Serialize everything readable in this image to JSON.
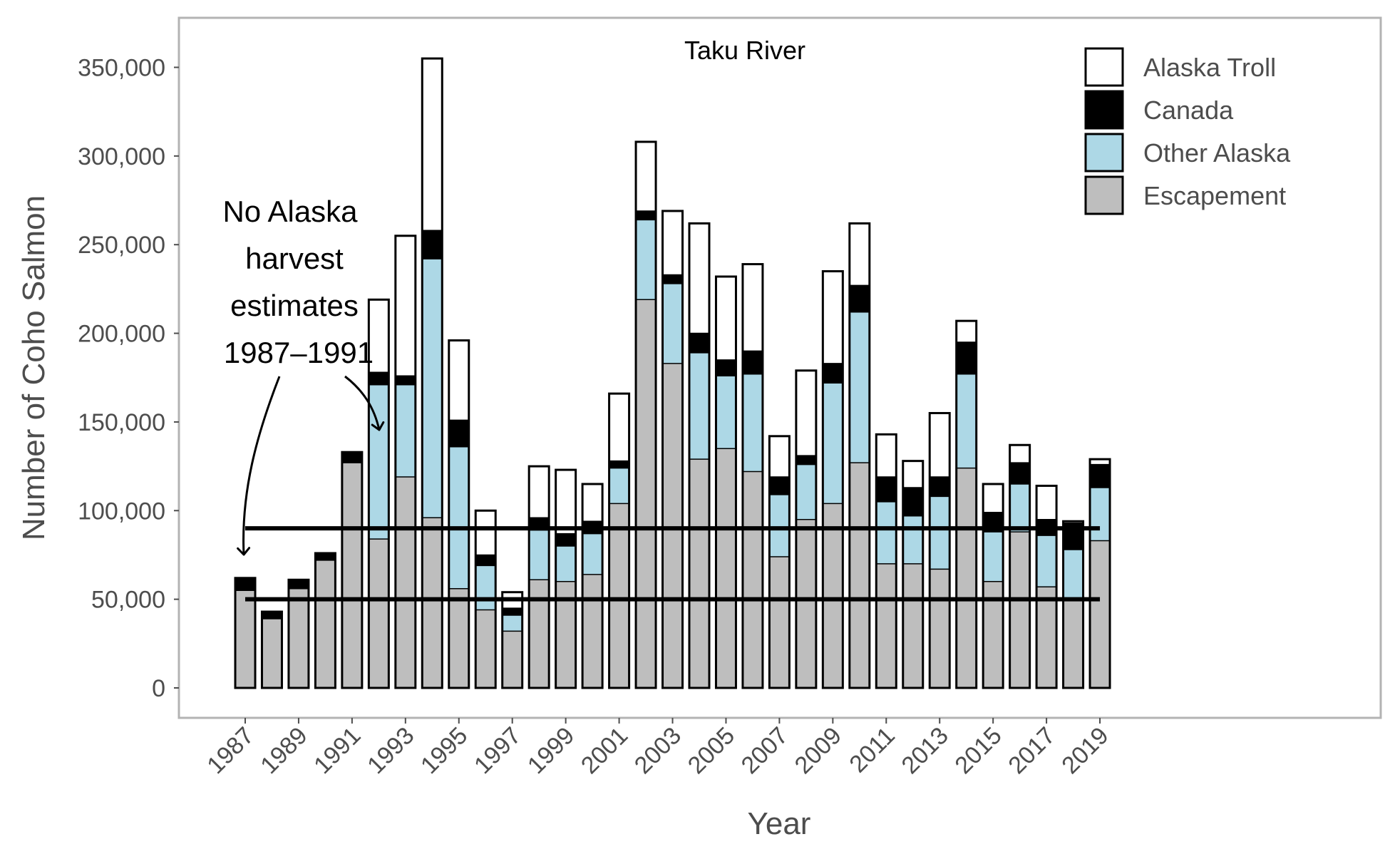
{
  "chart_data": {
    "type": "bar",
    "stacked": true,
    "title": "Taku River",
    "xlabel": "Year",
    "ylabel": "Number of Coho Salmon",
    "ylim": [
      0,
      375000
    ],
    "xlim": [
      1986,
      1988
    ],
    "y_ticks": [
      0,
      50000,
      100000,
      150000,
      200000,
      250000,
      300000,
      350000
    ],
    "y_tick_labels": [
      "0",
      "50,000",
      "100,000",
      "150,000",
      "200,000",
      "250,000",
      "300,000",
      "350,000"
    ],
    "x_ticks": [
      1987,
      1989,
      1991,
      1993,
      1995,
      1997,
      1999,
      2001,
      2003,
      2005,
      2007,
      2009,
      2011,
      2013,
      2015,
      2017,
      2019
    ],
    "x_tick_labels": [
      "1987",
      "1989",
      "1991",
      "1993",
      "1995",
      "1997",
      "1999",
      "2001",
      "2003",
      "2005",
      "2007",
      "2009",
      "2011",
      "2013",
      "2015",
      "2017",
      "2019"
    ],
    "legend_position": "top-right",
    "grid": false,
    "categories": [
      1987,
      1988,
      1989,
      1990,
      1991,
      1992,
      1993,
      1994,
      1995,
      1996,
      1997,
      1998,
      1999,
      2000,
      2001,
      2002,
      2003,
      2004,
      2005,
      2006,
      2007,
      2008,
      2009,
      2010,
      2011,
      2012,
      2013,
      2014,
      2015,
      2016,
      2017,
      2018,
      2019
    ],
    "series": [
      {
        "name": "Escapement",
        "color": "#bebebe",
        "values": [
          55000,
          39000,
          56000,
          72000,
          127000,
          84000,
          119000,
          96000,
          56000,
          44000,
          32000,
          61000,
          60000,
          64000,
          104000,
          219000,
          183000,
          129000,
          135000,
          122000,
          74000,
          95000,
          104000,
          127000,
          70000,
          70000,
          67000,
          124000,
          60000,
          88000,
          57000,
          50000,
          83000
        ]
      },
      {
        "name": "Other Alaska",
        "color": "#add8e6",
        "values": [
          0,
          0,
          0,
          0,
          0,
          87000,
          52000,
          146000,
          80000,
          25000,
          9000,
          28000,
          20000,
          23000,
          20000,
          45000,
          45000,
          60000,
          41000,
          55000,
          35000,
          31000,
          68000,
          85000,
          35000,
          27000,
          41000,
          53000,
          28000,
          27000,
          29000,
          28000,
          30000
        ]
      },
      {
        "name": "Canada",
        "color": "#000000",
        "values": [
          7000,
          4000,
          5000,
          4000,
          6000,
          7000,
          5000,
          16000,
          15000,
          6000,
          4000,
          7000,
          7000,
          7000,
          4000,
          5000,
          5000,
          11000,
          9000,
          13000,
          10000,
          5000,
          11000,
          15000,
          14000,
          16000,
          11000,
          18000,
          11000,
          12000,
          9000,
          15000,
          13000
        ]
      },
      {
        "name": "Alaska Troll",
        "color": "#ffffff",
        "values": [
          0,
          0,
          0,
          0,
          0,
          41000,
          79000,
          97000,
          45000,
          25000,
          9000,
          29000,
          36000,
          21000,
          38000,
          39000,
          36000,
          62000,
          47000,
          49000,
          23000,
          48000,
          52000,
          35000,
          24000,
          15000,
          36000,
          12000,
          16000,
          10000,
          19000,
          1000,
          3000
        ]
      }
    ],
    "reference_lines": [
      {
        "y": 90000,
        "x_range": [
          1987,
          2019
        ]
      },
      {
        "y": 50000,
        "x_range": [
          1987,
          2019
        ]
      }
    ],
    "annotation": {
      "lines": [
        "No Alaska",
        "harvest",
        "estimates",
        "1987–1991"
      ],
      "arrow_targets": [
        1987,
        1991
      ]
    }
  }
}
